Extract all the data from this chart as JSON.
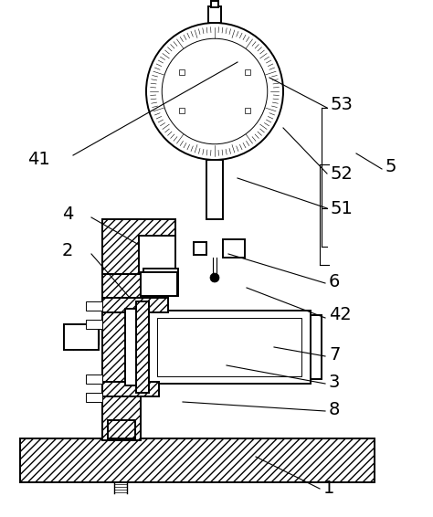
{
  "background_color": "#ffffff",
  "line_color": "#000000",
  "figsize": [
    4.74,
    5.66
  ],
  "dpi": 100,
  "label_fs": 14,
  "lw_main": 1.4,
  "lw_thin": 0.7,
  "lw_lead": 0.8
}
